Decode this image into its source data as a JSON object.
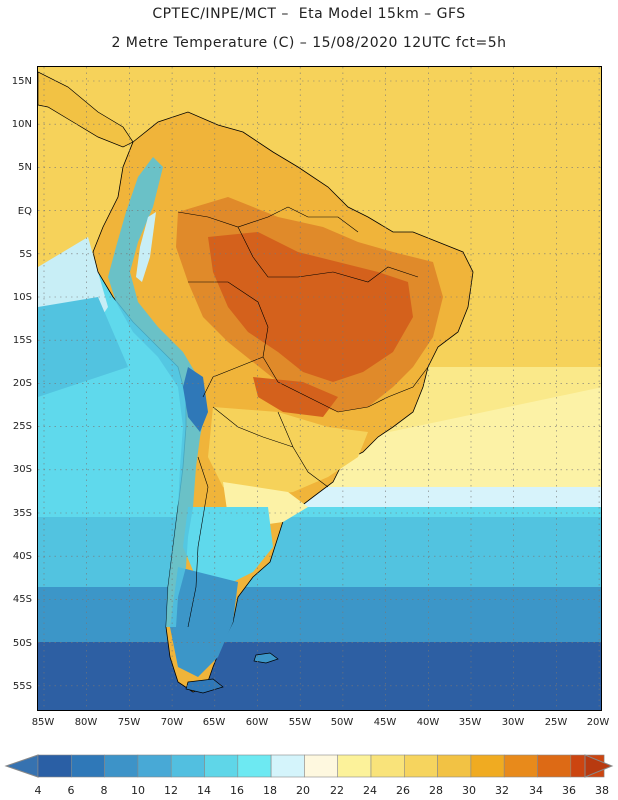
{
  "header": {
    "line1": "CPTEC/INPE/MCT –  Eta Model 15km – GFS",
    "line2": "2 Metre Temperature (C) – 15/08/2020 12UTC fct=5h"
  },
  "map": {
    "lat_labels": [
      "15N",
      "10N",
      "5N",
      "EQ",
      "5S",
      "10S",
      "15S",
      "20S",
      "25S",
      "30S",
      "35S",
      "40S",
      "45S",
      "50S",
      "55S"
    ],
    "lon_labels": [
      "85W",
      "80W",
      "75W",
      "70W",
      "65W",
      "60W",
      "55W",
      "50W",
      "45W",
      "40W",
      "35W",
      "30W",
      "25W",
      "20W"
    ]
  },
  "colorbar": {
    "labels": [
      "4",
      "6",
      "8",
      "10",
      "12",
      "14",
      "16",
      "18",
      "20",
      "22",
      "24",
      "26",
      "28",
      "30",
      "32",
      "34",
      "36",
      "38"
    ],
    "colors": [
      "#2a5fa5",
      "#2f78b8",
      "#3d93c8",
      "#48a9d6",
      "#52bfe0",
      "#5fd6e8",
      "#6de9f2",
      "#d4f4fb",
      "#fef8df",
      "#fcf29a",
      "#f9e37a",
      "#f6d45e",
      "#f2c244",
      "#f0ab21",
      "#e88a1b",
      "#dd6a15",
      "#cc4510"
    ],
    "under_color": "#3672b0",
    "over_color": "#b83a10"
  },
  "palette": {
    "ocean_deep": "#2d5fa3",
    "ocean_mid": "#3c96c8",
    "ocean_light": "#52c3e0",
    "ocean_cyan": "#5fd9ec",
    "warm_bg": "#f6d25a",
    "hot": "#e08a2a",
    "very_hot": "#d4611c"
  }
}
